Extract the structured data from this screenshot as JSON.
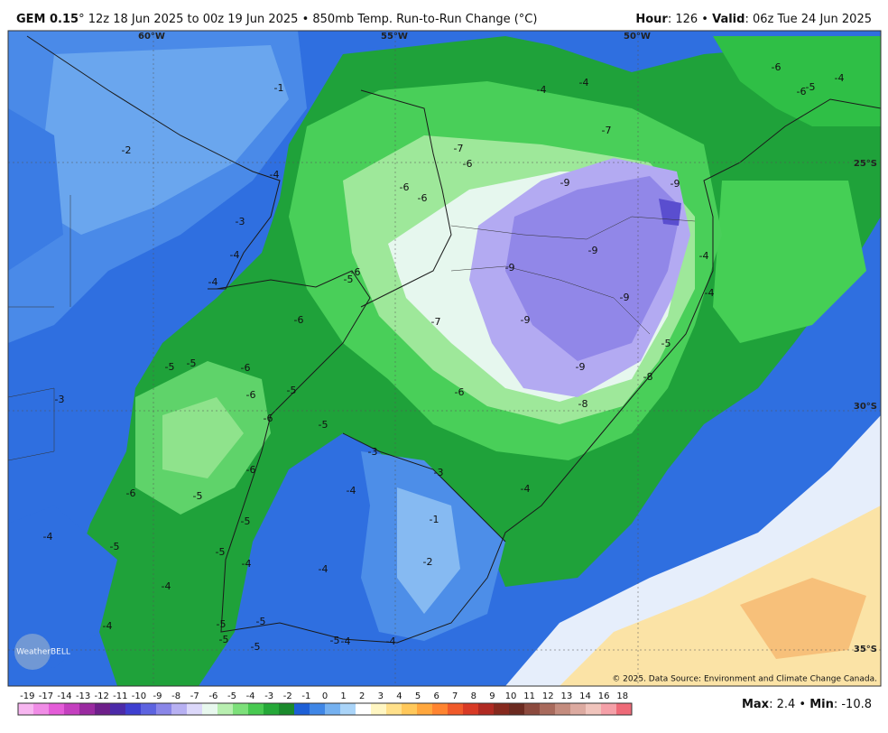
{
  "header": {
    "model": "GEM 0.15",
    "description": "° 12z 18 Jun 2025 to 00z 19 Jun 2025 • 850mb Temp. Run-to-Run Change (°C)",
    "hour_label": "Hour",
    "hour": ": 126 • ",
    "valid_label": "Valid",
    "valid": ": 06z Tue 24 Jun 2025"
  },
  "grid_labels": {
    "lon": [
      "60°W",
      "55°W",
      "50°W"
    ],
    "lat": [
      "25°S",
      "30°S",
      "35°S"
    ]
  },
  "contour_labels": [
    "-4",
    "-4",
    "-7",
    "-7",
    "-6",
    "-9",
    "-9",
    "-9",
    "-9",
    "-9",
    "-9",
    "-7",
    "-9",
    "-8",
    "-8",
    "-5",
    "-4",
    "-4",
    "-6",
    "-6",
    "-4",
    "-6",
    "-5",
    "-2",
    "-4",
    "-3",
    "-4",
    "-4",
    "-6",
    "-5",
    "-6",
    "-5",
    "-5",
    "-6",
    "-6",
    "-5",
    "-6",
    "-3",
    "-5",
    "-3",
    "-3",
    "-6",
    "-4",
    "-5",
    "-6",
    "-4",
    "-1",
    "-5",
    "-4",
    "-5",
    "-5",
    "-4",
    "-4",
    "-2",
    "-4",
    "-4",
    "-5",
    "-5",
    "-5",
    "-5",
    "-5",
    "-4",
    "-4",
    "-6",
    "-6",
    "-1"
  ],
  "copyright": "© 2025. Data Source: Environment and Climate Change Canada.",
  "logo": "WeatherBELL",
  "colorbar": {
    "ticks": [
      "-19",
      "-17",
      "-14",
      "-13",
      "-12",
      "-11",
      "-10",
      "-9",
      "-8",
      "-7",
      "-6",
      "-5",
      "-4",
      "-3",
      "-2",
      "-1",
      "0",
      "1",
      "2",
      "3",
      "4",
      "5",
      "6",
      "7",
      "8",
      "9",
      "10",
      "11",
      "12",
      "13",
      "14",
      "16",
      "18"
    ],
    "colors": [
      "#f7b6f0",
      "#f08ce6",
      "#e45cd8",
      "#c43fbf",
      "#9a2aa0",
      "#6e1f8a",
      "#4b2aa8",
      "#3e3fd0",
      "#5d63e0",
      "#8a86e8",
      "#b7b0f2",
      "#dcd8fa",
      "#e8f8ee",
      "#b8efb0",
      "#7de07a",
      "#48c950",
      "#25a838",
      "#1a8a2c",
      "#1d5fd6",
      "#3f86e6",
      "#75b1f0",
      "#aad4f8",
      "#ffffff",
      "#fff6c2",
      "#ffe08a",
      "#ffc85a",
      "#ffa73d",
      "#ff8430",
      "#f05a2a",
      "#d83a25",
      "#b02a22",
      "#86291e",
      "#6b2a20",
      "#8c4a3e",
      "#a86a5c",
      "#c48c7e",
      "#dcaaa0",
      "#f0c4bc",
      "#f5a0a8",
      "#ee6a78"
    ]
  },
  "footer": {
    "max_label": "Max",
    "max": ": 2.4 • ",
    "min_label": "Min",
    "min": ": -10.8"
  }
}
